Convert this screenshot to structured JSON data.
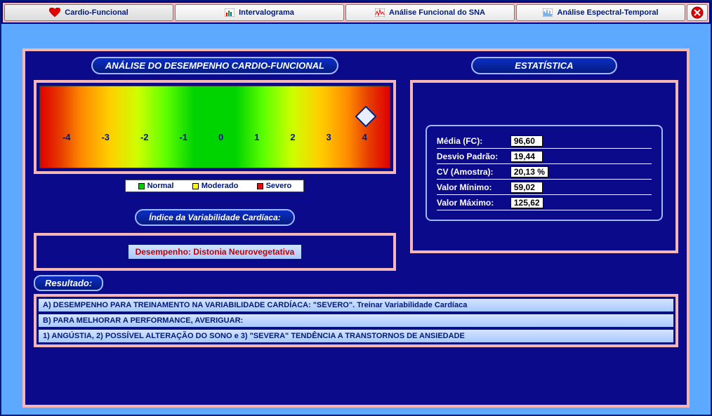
{
  "toolbar": {
    "tabs": [
      {
        "label": "Cardio-Funcional",
        "icon": "heart"
      },
      {
        "label": "Intervalograma",
        "icon": "barchart"
      },
      {
        "label": "Análise Funcional do SNA",
        "icon": "pulsechart"
      },
      {
        "label": "Análise Espectral-Temporal",
        "icon": "spectrum"
      }
    ]
  },
  "headers": {
    "analysis": "ANÁLISE DO DESEMPENHO CARDIO-FUNCIONAL",
    "statistics": "ESTATÍSTICA",
    "hrv_index": "Índice da Variabilidade Cardíaca:",
    "result": "Resultado:"
  },
  "scale": {
    "ticks": [
      "-4",
      "-3",
      "-2",
      "-1",
      "0",
      "1",
      "2",
      "3",
      "4"
    ],
    "marker_value": 4,
    "marker_left_pct": 91,
    "gradient_colors": [
      "#e00000",
      "#ff8c00",
      "#ffcf00",
      "#5eff00",
      "#00d400",
      "#5eff00",
      "#ffcf00",
      "#ff8c00",
      "#e00000"
    ]
  },
  "legend": {
    "items": [
      {
        "label": "Normal",
        "color": "#00cc00"
      },
      {
        "label": "Moderado",
        "color": "#ffff00"
      },
      {
        "label": "Severo",
        "color": "#ff0000"
      }
    ]
  },
  "performance": {
    "text": "Desempenho: Distonia Neurovegetativa"
  },
  "stats": {
    "media_label": "Média (FC):",
    "media_val": "96,60",
    "desvio_label": "Desvio Padrão:",
    "desvio_val": "19,44",
    "cv_label": "CV (Amostra):",
    "cv_val": "20,13 %",
    "min_label": "Valor Mínimo:",
    "min_val": "59,02",
    "max_label": "Valor Máximo:",
    "max_val": "125,62"
  },
  "results": {
    "lines": [
      "A) DESEMPENHO PARA TREINAMENTO NA VARIABILIDADE CARDÍACA: \"SEVERO\". Treinar Variabilidade Cardíaca",
      "B) PARA MELHORAR A PERFORMANCE, AVERIGUAR:",
      "1) ANGÚSTIA, 2) POSSÍVEL ALTERAÇÃO DO SONO e 3) \"SEVERA\" TENDÊNCIA A TRANSTORNOS DE ANSIEDADE"
    ]
  },
  "colors": {
    "frame_pink": "#f5b6b6",
    "panel_blue": "#0a0a8a",
    "outer_blue": "#5ca9ff",
    "pill_border": "#a0b8ff"
  }
}
